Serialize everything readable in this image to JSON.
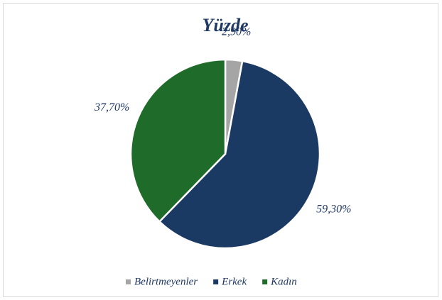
{
  "chart_data": {
    "type": "pie",
    "title": "Yüzde",
    "categories": [
      "Belirtmeyenler",
      "Erkek",
      "Kadın"
    ],
    "values": [
      2.9,
      59.3,
      37.7
    ],
    "value_labels": [
      "2,90%",
      "59,30%",
      "37,70%"
    ],
    "colors": [
      "#a5a5a5",
      "#1b3a63",
      "#1e6b2a"
    ],
    "legend": "bottom"
  }
}
